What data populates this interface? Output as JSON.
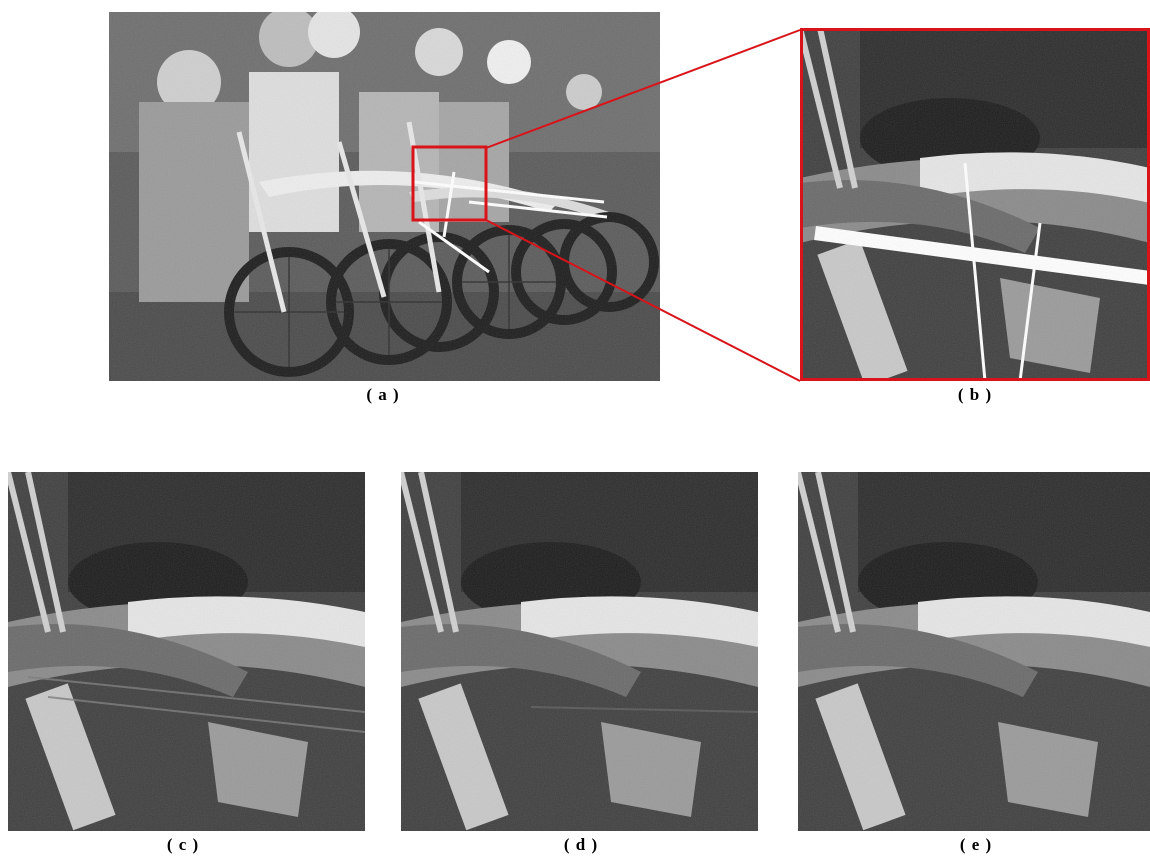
{
  "captions": {
    "a": "( a )",
    "b": "( b )",
    "c": "( c )",
    "d": "( d )",
    "e": "( e )"
  },
  "colors": {
    "highlight_box": "#d8141a",
    "background": "#ffffff",
    "scribble_lines": "#ffffff"
  }
}
